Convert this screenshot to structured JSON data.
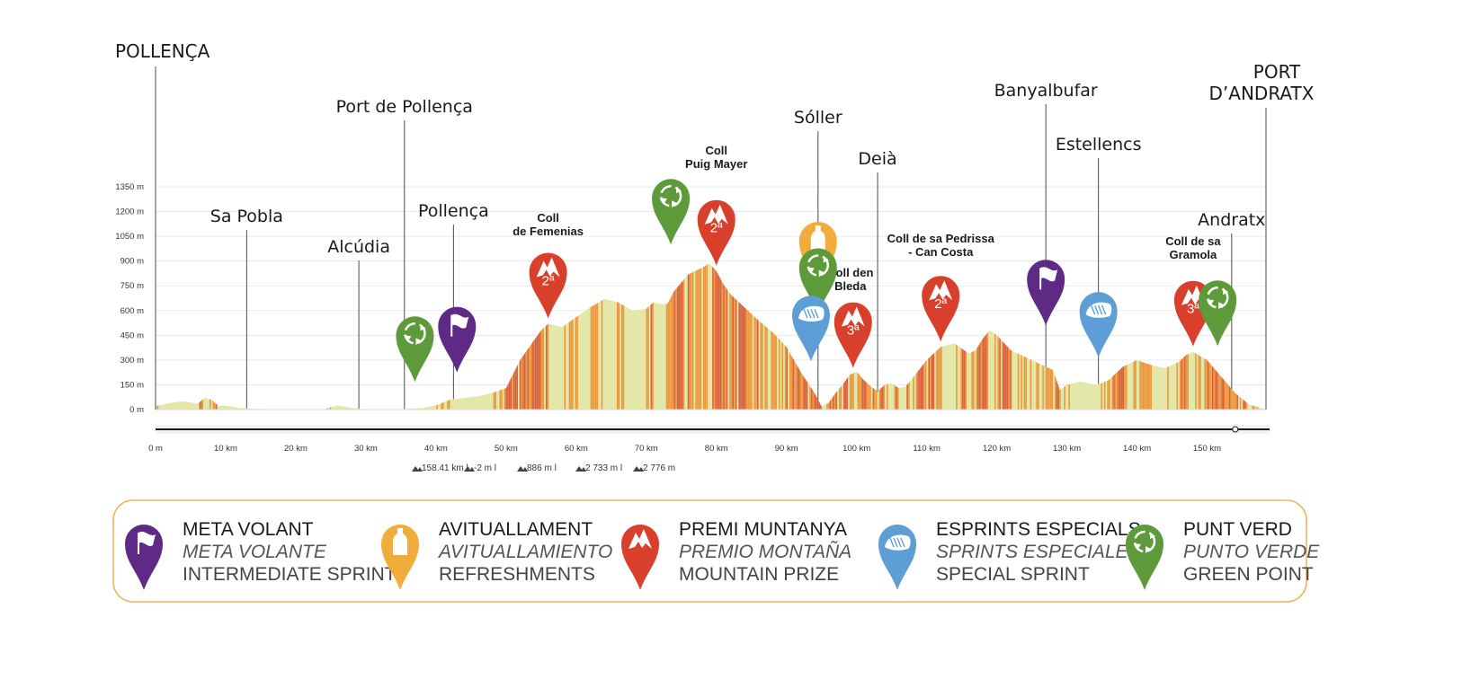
{
  "colors": {
    "profile_fill": "#e3e7a8",
    "stripe_orange": "#ee8a2c",
    "stripe_red": "#d9452a",
    "meta_volant": "#5e2a86",
    "avituallament": "#f0ad3c",
    "premi_muntanya": "#d9402b",
    "esprints": "#5d9ed6",
    "punt_verd": "#5c9a3a",
    "legend_border": "#f0b35a"
  },
  "stats": [
    "158.41 km",
    "-2 m",
    "886 m",
    "2 733 m",
    "2 776 m"
  ],
  "chart_data": {
    "type": "area",
    "xlabel": "",
    "ylabel": "",
    "x_unit": "km",
    "y_unit": "m",
    "xlim": [
      0,
      158.4
    ],
    "ylim": [
      0,
      1350
    ],
    "yticks": [
      "0 m",
      "150 m",
      "300 m",
      "450 m",
      "600 m",
      "750 m",
      "900 m",
      "1050 m",
      "1200 m",
      "1350 m"
    ],
    "ytick_values": [
      0,
      150,
      300,
      450,
      600,
      750,
      900,
      1050,
      1200,
      1350
    ],
    "xticks": [
      "0 m",
      "10 km",
      "20 km",
      "30 km",
      "40 km",
      "50 km",
      "60 km",
      "70 km",
      "80 km",
      "90 km",
      "100 km",
      "110 km",
      "120 km",
      "130 km",
      "140 km",
      "150 km"
    ],
    "xtick_values": [
      0,
      10,
      20,
      30,
      40,
      50,
      60,
      70,
      80,
      90,
      100,
      110,
      120,
      130,
      140,
      150
    ],
    "profile": {
      "x": [
        0,
        2,
        4,
        6,
        7,
        8,
        9,
        10,
        12,
        14,
        16,
        18,
        20,
        22,
        24,
        25,
        26,
        28,
        29,
        30,
        32,
        34,
        36,
        38,
        40,
        42,
        44,
        46,
        48,
        50,
        52,
        54,
        55,
        56,
        57,
        58,
        60,
        62,
        64,
        65,
        66,
        68,
        70,
        71,
        72,
        73,
        74,
        76,
        78,
        79,
        80,
        81,
        82,
        84,
        86,
        88,
        90,
        92,
        94,
        95,
        96,
        97,
        98,
        99,
        100,
        101,
        102,
        103,
        104,
        105,
        106,
        107,
        108,
        110,
        112,
        114,
        116,
        117,
        118,
        119,
        120,
        122,
        124,
        126,
        128,
        129,
        130,
        132,
        134,
        135,
        136,
        138,
        140,
        142,
        144,
        146,
        147,
        148,
        150,
        152,
        154,
        156,
        158.4
      ],
      "y": [
        20,
        40,
        50,
        35,
        70,
        60,
        20,
        25,
        10,
        5,
        2,
        0,
        -2,
        0,
        0,
        15,
        25,
        10,
        5,
        0,
        0,
        0,
        5,
        10,
        25,
        60,
        70,
        80,
        100,
        130,
        300,
        420,
        480,
        520,
        510,
        500,
        560,
        620,
        670,
        660,
        650,
        600,
        610,
        650,
        640,
        640,
        720,
        820,
        860,
        886,
        840,
        760,
        700,
        620,
        540,
        470,
        380,
        230,
        100,
        20,
        40,
        100,
        150,
        210,
        230,
        180,
        140,
        110,
        150,
        160,
        130,
        140,
        190,
        300,
        380,
        400,
        340,
        360,
        430,
        480,
        450,
        360,
        320,
        280,
        240,
        120,
        150,
        170,
        150,
        160,
        180,
        260,
        300,
        270,
        250,
        290,
        330,
        350,
        300,
        200,
        100,
        30,
        0
      ]
    },
    "top_places": [
      {
        "name": "POLLENÇA",
        "x": 0
      },
      {
        "name": "PORT",
        "name2": "D’ANDRATX",
        "x": 158.4
      }
    ],
    "places": [
      {
        "name": "Sa Pobla",
        "x": 13
      },
      {
        "name": "Alcúdia",
        "x": 29
      },
      {
        "name": "Port de Pollença",
        "x": 35.5
      },
      {
        "name": "Pollença",
        "x": 42.5
      },
      {
        "name": "Sóller",
        "x": 94.5
      },
      {
        "name": "Deià",
        "x": 103
      },
      {
        "name": "Banyalbufar",
        "x": 127
      },
      {
        "name": "Estellencs",
        "x": 134.5
      },
      {
        "name": "Andratx",
        "x": 153.5
      }
    ],
    "climbs": [
      {
        "name": "Coll",
        "name2": "de Femenias",
        "x": 56,
        "category": "2ª"
      },
      {
        "name": "Coll",
        "name2": "Puig Mayer",
        "x": 80,
        "category": "2ª"
      },
      {
        "name": "Coll den",
        "name2": "Bleda",
        "x": 99.5,
        "category": "3ª"
      },
      {
        "name": "Coll de sa Pedrissa",
        "name2": "- Can Costa",
        "x": 112,
        "category": "2ª"
      },
      {
        "name": "Coll de sa",
        "name2": "Gramola",
        "x": 148,
        "category": "3ª"
      }
    ],
    "markers": [
      {
        "type": "punt_verd",
        "x": 37,
        "y_offset": 160
      },
      {
        "type": "meta_volant",
        "x": 43,
        "y_offset": 160
      },
      {
        "type": "punt_verd",
        "x": 73.5,
        "y_offset": 320
      },
      {
        "type": "avituallament",
        "x": 94.5,
        "y_offset": 680
      },
      {
        "type": "punt_verd",
        "x": 94.5,
        "y_offset": 520
      },
      {
        "type": "esprints",
        "x": 93.5,
        "y_offset": 160
      },
      {
        "type": "meta_volant",
        "x": 127,
        "y_offset": 250
      },
      {
        "type": "esprints",
        "x": 134.5,
        "y_offset": 160
      },
      {
        "type": "punt_verd",
        "x": 151.5,
        "y_offset": 160
      }
    ]
  },
  "legend": [
    {
      "type": "meta_volant",
      "title": "META VOLANT",
      "es": "META VOLANTE",
      "en": "INTERMEDIATE SPRINT"
    },
    {
      "type": "avituallament",
      "title": "AVITUALLAMENT",
      "es": "AVITUALLAMIENTO",
      "en": "REFRESHMENTS"
    },
    {
      "type": "premi_muntanya",
      "title": "PREMI MUNTANYA",
      "es": "PREMIO MONTAÑA",
      "en": "MOUNTAIN PRIZE"
    },
    {
      "type": "esprints",
      "title": "ESPRINTS ESPECIALS",
      "es": "SPRINTS ESPECIALES",
      "en": "SPECIAL SPRINT"
    },
    {
      "type": "punt_verd",
      "title": "PUNT VERD",
      "es": "PUNTO VERDE",
      "en": "GREEN POINT"
    }
  ]
}
